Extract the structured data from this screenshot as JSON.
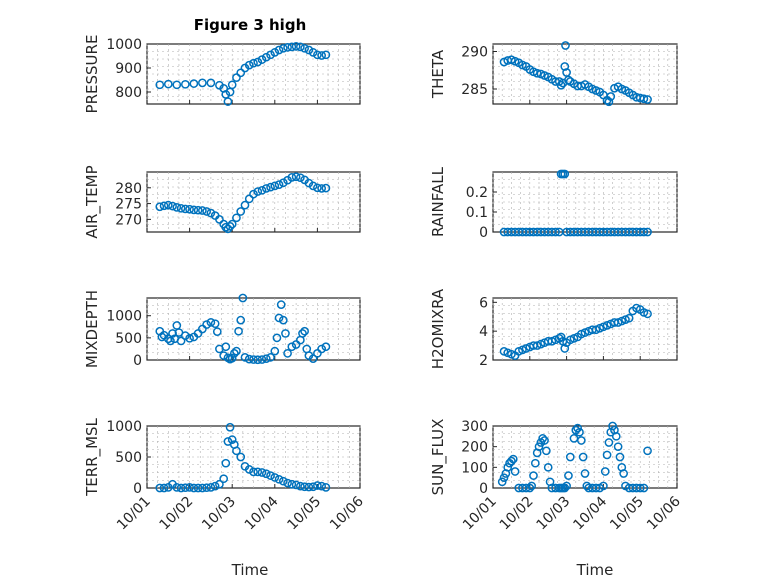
{
  "figure": {
    "title": "Figure 3 high",
    "marker_color": "#0072BD"
  },
  "chart_data": [
    {
      "type": "scatter",
      "ylabel": "PRESSURE",
      "ylim": [
        750,
        1000
      ],
      "yticks": [
        "800",
        "900",
        "1000"
      ],
      "xticks": [
        "10/01",
        "10/02",
        "10/03",
        "10/04",
        "10/05",
        "10/06"
      ],
      "xlim": [
        1,
        6
      ],
      "x": [
        1.3,
        1.5,
        1.7,
        1.9,
        2.1,
        2.3,
        2.5,
        2.7,
        2.8,
        2.85,
        2.9,
        2.95,
        3.0,
        3.1,
        3.2,
        3.3,
        3.4,
        3.5,
        3.6,
        3.7,
        3.8,
        3.9,
        4.0,
        4.1,
        4.2,
        4.3,
        4.4,
        4.5,
        4.6,
        4.7,
        4.8,
        4.9,
        5.0,
        5.1,
        5.2
      ],
      "y": [
        830,
        833,
        830,
        832,
        835,
        838,
        838,
        828,
        815,
        790,
        760,
        800,
        830,
        860,
        880,
        900,
        912,
        920,
        925,
        935,
        945,
        955,
        965,
        975,
        982,
        986,
        988,
        990,
        988,
        982,
        975,
        965,
        955,
        952,
        955
      ]
    },
    {
      "type": "scatter",
      "ylabel": "THETA",
      "ylim": [
        283,
        291
      ],
      "yticks": [
        "285",
        "290"
      ],
      "xticks": [
        "10/01",
        "10/02",
        "10/03",
        "10/04",
        "10/05",
        "10/06"
      ],
      "xlim": [
        1,
        6
      ],
      "x": [
        1.3,
        1.4,
        1.5,
        1.6,
        1.7,
        1.8,
        1.9,
        2.0,
        2.1,
        2.2,
        2.3,
        2.4,
        2.5,
        2.6,
        2.7,
        2.8,
        2.85,
        2.9,
        2.95,
        2.97,
        3.0,
        3.05,
        3.1,
        3.2,
        3.3,
        3.4,
        3.5,
        3.6,
        3.7,
        3.8,
        3.9,
        4.0,
        4.1,
        4.15,
        4.2,
        4.3,
        4.4,
        4.5,
        4.6,
        4.7,
        4.8,
        4.9,
        5.0,
        5.1,
        5.2
      ],
      "y": [
        288.6,
        288.8,
        288.9,
        288.7,
        288.5,
        288.2,
        288.0,
        287.6,
        287.3,
        287.1,
        287.0,
        286.8,
        286.6,
        286.3,
        286.0,
        286.0,
        285.5,
        285.8,
        288.0,
        290.8,
        287.2,
        286.2,
        286.0,
        285.7,
        285.4,
        285.4,
        285.6,
        285.3,
        285.0,
        284.8,
        284.6,
        284.2,
        283.5,
        283.3,
        284.0,
        285.1,
        285.3,
        285.0,
        284.8,
        284.5,
        284.2,
        283.9,
        283.8,
        283.7,
        283.6
      ]
    },
    {
      "type": "scatter",
      "ylabel": "AIR_TEMP",
      "ylim": [
        266,
        285
      ],
      "yticks": [
        "270",
        "275",
        "280"
      ],
      "xticks": [
        "10/01",
        "10/02",
        "10/03",
        "10/04",
        "10/05",
        "10/06"
      ],
      "xlim": [
        1,
        6
      ],
      "x": [
        1.3,
        1.4,
        1.5,
        1.6,
        1.7,
        1.8,
        1.9,
        2.0,
        2.1,
        2.2,
        2.3,
        2.4,
        2.5,
        2.6,
        2.7,
        2.8,
        2.85,
        2.9,
        2.95,
        3.0,
        3.1,
        3.2,
        3.3,
        3.4,
        3.5,
        3.6,
        3.7,
        3.8,
        3.9,
        4.0,
        4.1,
        4.2,
        4.3,
        4.4,
        4.5,
        4.6,
        4.7,
        4.8,
        4.9,
        5.0,
        5.1,
        5.2
      ],
      "y": [
        274.0,
        274.3,
        274.5,
        274.2,
        273.8,
        273.5,
        273.3,
        273.2,
        273.0,
        272.9,
        272.8,
        272.5,
        272.0,
        271.2,
        270.0,
        268.5,
        267.5,
        267.0,
        267.8,
        268.5,
        270.5,
        272.5,
        274.5,
        276.5,
        278.0,
        278.8,
        279.2,
        279.8,
        280.2,
        280.6,
        281.0,
        281.6,
        282.4,
        283.3,
        283.5,
        283.2,
        282.5,
        281.5,
        280.6,
        280.0,
        279.8,
        279.9
      ]
    },
    {
      "type": "scatter",
      "ylabel": "RAINFALL",
      "ylim": [
        0,
        0.3
      ],
      "yticks": [
        "0",
        "0.1",
        "0.2"
      ],
      "xticks": [
        "10/01",
        "10/02",
        "10/03",
        "10/04",
        "10/05",
        "10/06"
      ],
      "xlim": [
        1,
        6
      ],
      "x": [
        1.3,
        1.4,
        1.5,
        1.6,
        1.7,
        1.8,
        1.9,
        2.0,
        2.1,
        2.2,
        2.3,
        2.4,
        2.5,
        2.6,
        2.7,
        2.8,
        2.85,
        2.9,
        2.95,
        3.0,
        3.1,
        3.2,
        3.3,
        3.4,
        3.5,
        3.6,
        3.7,
        3.8,
        3.9,
        4.0,
        4.1,
        4.2,
        4.3,
        4.4,
        4.5,
        4.6,
        4.7,
        4.8,
        4.9,
        5.0,
        5.1,
        5.2
      ],
      "y": [
        0,
        0,
        0,
        0,
        0,
        0,
        0,
        0,
        0,
        0,
        0,
        0,
        0,
        0,
        0,
        0,
        0.29,
        0.29,
        0.29,
        0,
        0,
        0,
        0,
        0,
        0,
        0,
        0,
        0,
        0,
        0,
        0,
        0,
        0,
        0,
        0,
        0,
        0,
        0,
        0,
        0,
        0,
        0
      ]
    },
    {
      "type": "scatter",
      "ylabel": "MIXDEPTH",
      "ylim": [
        0,
        1400
      ],
      "yticks": [
        "0",
        "500",
        "1000"
      ],
      "xticks": [
        "10/01",
        "10/02",
        "10/03",
        "10/04",
        "10/05",
        "10/06"
      ],
      "xlim": [
        1,
        6
      ],
      "x": [
        1.3,
        1.35,
        1.4,
        1.5,
        1.55,
        1.6,
        1.65,
        1.7,
        1.75,
        1.8,
        1.9,
        2.0,
        2.1,
        2.2,
        2.3,
        2.4,
        2.5,
        2.6,
        2.65,
        2.7,
        2.8,
        2.85,
        2.9,
        2.95,
        3.0,
        3.05,
        3.1,
        3.15,
        3.2,
        3.25,
        3.3,
        3.4,
        3.5,
        3.6,
        3.7,
        3.8,
        3.9,
        4.0,
        4.05,
        4.1,
        4.15,
        4.2,
        4.25,
        4.3,
        4.4,
        4.5,
        4.6,
        4.65,
        4.7,
        4.75,
        4.8,
        4.9,
        5.0,
        5.1,
        5.2
      ],
      "y": [
        650,
        520,
        560,
        480,
        430,
        600,
        480,
        780,
        620,
        430,
        550,
        490,
        520,
        600,
        700,
        800,
        850,
        820,
        640,
        250,
        100,
        300,
        50,
        20,
        40,
        150,
        200,
        650,
        900,
        1400,
        60,
        20,
        10,
        5,
        10,
        30,
        60,
        200,
        500,
        950,
        1250,
        900,
        600,
        150,
        300,
        350,
        450,
        600,
        650,
        250,
        100,
        30,
        150,
        250,
        300
      ]
    },
    {
      "type": "scatter",
      "ylabel": "H2OMIXRA",
      "ylim": [
        2,
        6.3
      ],
      "yticks": [
        "2",
        "4",
        "6"
      ],
      "xticks": [
        "10/01",
        "10/02",
        "10/03",
        "10/04",
        "10/05",
        "10/06"
      ],
      "xlim": [
        1,
        6
      ],
      "x": [
        1.3,
        1.4,
        1.5,
        1.6,
        1.7,
        1.8,
        1.9,
        2.0,
        2.1,
        2.2,
        2.3,
        2.4,
        2.5,
        2.6,
        2.7,
        2.8,
        2.85,
        2.9,
        2.95,
        3.0,
        3.1,
        3.2,
        3.3,
        3.4,
        3.5,
        3.6,
        3.7,
        3.8,
        3.9,
        4.0,
        4.1,
        4.2,
        4.3,
        4.4,
        4.5,
        4.6,
        4.7,
        4.8,
        4.9,
        5.0,
        5.1,
        5.2
      ],
      "y": [
        2.6,
        2.5,
        2.4,
        2.3,
        2.6,
        2.7,
        2.8,
        2.9,
        3.0,
        3.0,
        3.1,
        3.2,
        3.3,
        3.3,
        3.4,
        3.5,
        3.6,
        3.3,
        2.8,
        3.2,
        3.4,
        3.5,
        3.6,
        3.8,
        3.9,
        4.0,
        4.1,
        4.1,
        4.2,
        4.3,
        4.4,
        4.5,
        4.6,
        4.6,
        4.7,
        4.8,
        4.9,
        5.4,
        5.6,
        5.5,
        5.3,
        5.2
      ]
    },
    {
      "type": "scatter",
      "ylabel": "TERR_MSL",
      "ylim": [
        0,
        1000
      ],
      "yticks": [
        "0",
        "500",
        "1000"
      ],
      "xticks": [
        "10/01",
        "10/02",
        "10/03",
        "10/04",
        "10/05",
        "10/06"
      ],
      "xlim": [
        1,
        6
      ],
      "x": [
        1.3,
        1.4,
        1.5,
        1.6,
        1.7,
        1.8,
        1.9,
        2.0,
        2.1,
        2.2,
        2.3,
        2.4,
        2.5,
        2.6,
        2.7,
        2.8,
        2.85,
        2.9,
        2.95,
        3.0,
        3.05,
        3.1,
        3.2,
        3.3,
        3.4,
        3.5,
        3.6,
        3.7,
        3.8,
        3.9,
        4.0,
        4.1,
        4.2,
        4.3,
        4.4,
        4.5,
        4.6,
        4.7,
        4.8,
        4.9,
        5.0,
        5.1,
        5.2
      ],
      "y": [
        0,
        0,
        10,
        60,
        10,
        0,
        5,
        10,
        0,
        0,
        0,
        5,
        10,
        30,
        60,
        150,
        400,
        750,
        980,
        780,
        700,
        600,
        500,
        350,
        300,
        260,
        260,
        250,
        230,
        200,
        170,
        140,
        110,
        80,
        60,
        50,
        30,
        20,
        15,
        20,
        40,
        30,
        10
      ]
    },
    {
      "type": "scatter",
      "ylabel": "SUN_FLUX",
      "ylim": [
        0,
        300
      ],
      "yticks": [
        "0",
        "100",
        "200",
        "300"
      ],
      "xticks": [
        "10/01",
        "10/02",
        "10/03",
        "10/04",
        "10/05",
        "10/06"
      ],
      "xlim": [
        1,
        6
      ],
      "x": [
        1.25,
        1.3,
        1.35,
        1.4,
        1.45,
        1.5,
        1.55,
        1.6,
        1.7,
        1.8,
        1.9,
        2.0,
        2.05,
        2.1,
        2.15,
        2.2,
        2.25,
        2.3,
        2.35,
        2.4,
        2.45,
        2.5,
        2.55,
        2.6,
        2.7,
        2.8,
        2.85,
        2.9,
        2.95,
        3.0,
        3.05,
        3.1,
        3.2,
        3.25,
        3.3,
        3.35,
        3.4,
        3.45,
        3.5,
        3.55,
        3.6,
        3.7,
        3.8,
        3.9,
        4.0,
        4.05,
        4.1,
        4.15,
        4.2,
        4.25,
        4.3,
        4.35,
        4.4,
        4.45,
        4.5,
        4.55,
        4.6,
        4.7,
        4.8,
        4.9,
        5.0,
        5.1,
        5.2
      ],
      "y": [
        30,
        50,
        70,
        100,
        120,
        130,
        140,
        80,
        0,
        0,
        0,
        0,
        10,
        60,
        120,
        170,
        200,
        220,
        240,
        230,
        180,
        100,
        30,
        0,
        0,
        0,
        0,
        0,
        0,
        10,
        60,
        150,
        240,
        280,
        290,
        270,
        230,
        150,
        70,
        10,
        0,
        0,
        0,
        0,
        10,
        80,
        160,
        220,
        270,
        300,
        280,
        250,
        200,
        150,
        100,
        70,
        10,
        0,
        0,
        0,
        0,
        0,
        180
      ]
    }
  ],
  "xlabels": [
    "Time",
    "Time"
  ]
}
